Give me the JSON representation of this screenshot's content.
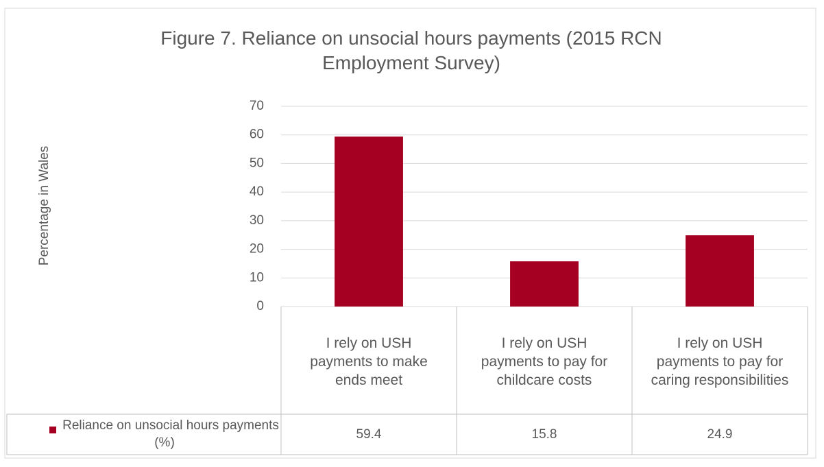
{
  "chart_data": {
    "type": "bar",
    "title": "Figure 7. Reliance on unsocial hours payments (2015 RCN Employment Survey)",
    "y_label": "Percentage in Wales",
    "categories": [
      "I rely on USH payments to make ends meet",
      "I rely on USH payments to pay for childcare costs",
      "I rely on USH payments to pay for caring responsibilities"
    ],
    "series": [
      {
        "name": "Reliance on unsocial hours payments (%)",
        "color": "#a50021",
        "values": [
          59.4,
          15.8,
          24.9
        ]
      }
    ],
    "ylim": [
      0,
      70
    ],
    "yticks": [
      0,
      10,
      20,
      30,
      40,
      50,
      60,
      70
    ],
    "grid": true,
    "data_table": true
  }
}
